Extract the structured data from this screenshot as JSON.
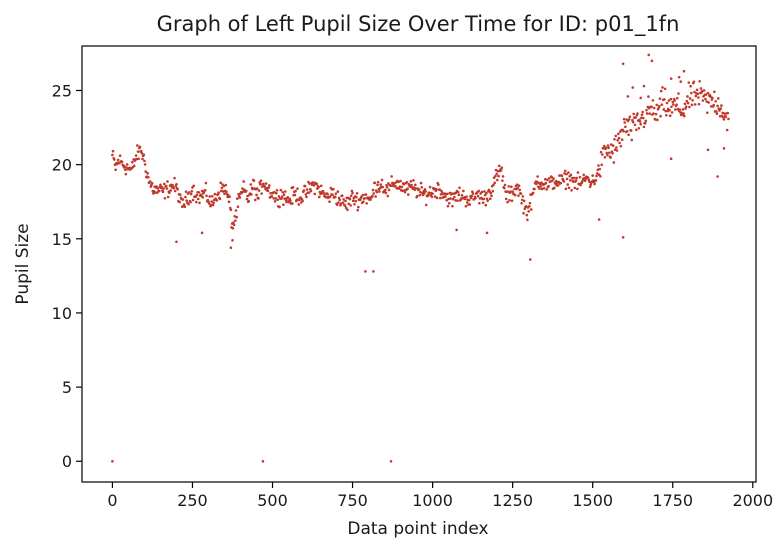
{
  "chart_data": {
    "type": "scatter",
    "title": "Graph of Left Pupil Size Over Time for ID: p01_1fn",
    "xlabel": "Data point index",
    "ylabel": "Pupil Size",
    "xlim": [
      -95,
      2010
    ],
    "ylim": [
      -1.4,
      28.0
    ],
    "xticks": [
      0,
      250,
      500,
      750,
      1000,
      1250,
      1500,
      1750,
      2000
    ],
    "yticks": [
      0,
      5,
      10,
      15,
      20,
      25
    ],
    "grid": false,
    "marker_color": "#c0392b",
    "trend": [
      [
        0,
        20.6
      ],
      [
        10,
        19.8
      ],
      [
        20,
        20.3
      ],
      [
        40,
        19.9
      ],
      [
        60,
        19.6
      ],
      [
        75,
        20.6
      ],
      [
        90,
        21.0
      ],
      [
        100,
        20.2
      ],
      [
        115,
        18.8
      ],
      [
        130,
        18.3
      ],
      [
        160,
        18.2
      ],
      [
        190,
        18.6
      ],
      [
        205,
        18.2
      ],
      [
        215,
        17.2
      ],
      [
        230,
        17.6
      ],
      [
        250,
        18.3
      ],
      [
        270,
        17.8
      ],
      [
        290,
        18.1
      ],
      [
        310,
        17.3
      ],
      [
        330,
        18.1
      ],
      [
        350,
        18.5
      ],
      [
        365,
        17.5
      ],
      [
        375,
        15.8
      ],
      [
        385,
        16.5
      ],
      [
        395,
        17.6
      ],
      [
        410,
        18.3
      ],
      [
        425,
        17.7
      ],
      [
        440,
        18.6
      ],
      [
        455,
        17.8
      ],
      [
        470,
        18.9
      ],
      [
        490,
        18.3
      ],
      [
        510,
        17.8
      ],
      [
        530,
        18.0
      ],
      [
        550,
        17.6
      ],
      [
        570,
        18.0
      ],
      [
        590,
        17.8
      ],
      [
        610,
        18.2
      ],
      [
        630,
        18.7
      ],
      [
        650,
        18.2
      ],
      [
        670,
        17.8
      ],
      [
        690,
        18.1
      ],
      [
        710,
        17.6
      ],
      [
        730,
        17.3
      ],
      [
        750,
        17.8
      ],
      [
        770,
        17.6
      ],
      [
        790,
        17.9
      ],
      [
        805,
        17.5
      ],
      [
        820,
        18.5
      ],
      [
        840,
        18.7
      ],
      [
        860,
        18.2
      ],
      [
        880,
        18.8
      ],
      [
        900,
        18.6
      ],
      [
        920,
        18.3
      ],
      [
        940,
        18.5
      ],
      [
        960,
        18.1
      ],
      [
        980,
        18.0
      ],
      [
        1000,
        18.2
      ],
      [
        1020,
        18.4
      ],
      [
        1040,
        17.9
      ],
      [
        1060,
        17.6
      ],
      [
        1080,
        18.0
      ],
      [
        1100,
        17.8
      ],
      [
        1120,
        17.6
      ],
      [
        1140,
        18.0
      ],
      [
        1160,
        17.7
      ],
      [
        1180,
        18.2
      ],
      [
        1200,
        19.2
      ],
      [
        1215,
        19.6
      ],
      [
        1230,
        17.8
      ],
      [
        1250,
        18.1
      ],
      [
        1265,
        18.6
      ],
      [
        1280,
        17.6
      ],
      [
        1295,
        16.8
      ],
      [
        1310,
        17.6
      ],
      [
        1325,
        19.0
      ],
      [
        1340,
        18.8
      ],
      [
        1360,
        18.6
      ],
      [
        1380,
        18.9
      ],
      [
        1400,
        18.8
      ],
      [
        1420,
        19.1
      ],
      [
        1440,
        18.9
      ],
      [
        1460,
        18.7
      ],
      [
        1480,
        19.1
      ],
      [
        1500,
        18.8
      ],
      [
        1520,
        19.6
      ],
      [
        1540,
        21.0
      ],
      [
        1560,
        20.8
      ],
      [
        1580,
        21.4
      ],
      [
        1600,
        22.6
      ],
      [
        1620,
        22.3
      ],
      [
        1640,
        22.8
      ],
      [
        1660,
        23.2
      ],
      [
        1680,
        23.8
      ],
      [
        1700,
        23.3
      ],
      [
        1720,
        24.3
      ],
      [
        1740,
        23.7
      ],
      [
        1760,
        24.0
      ],
      [
        1780,
        23.6
      ],
      [
        1800,
        24.4
      ],
      [
        1820,
        24.7
      ],
      [
        1840,
        24.6
      ],
      [
        1860,
        24.2
      ],
      [
        1880,
        24.3
      ],
      [
        1900,
        23.9
      ],
      [
        1920,
        23.1
      ]
    ],
    "outliers": [
      [
        0,
        0.0
      ],
      [
        470,
        0.0
      ],
      [
        870,
        0.0
      ],
      [
        200,
        14.8
      ],
      [
        280,
        15.4
      ],
      [
        370,
        14.4
      ],
      [
        375,
        14.9
      ],
      [
        790,
        12.8
      ],
      [
        815,
        12.8
      ],
      [
        1075,
        15.6
      ],
      [
        1170,
        15.4
      ],
      [
        1305,
        13.6
      ],
      [
        1520,
        16.3
      ],
      [
        1595,
        15.1
      ],
      [
        1595,
        26.8
      ],
      [
        1675,
        27.4
      ],
      [
        1685,
        27.0
      ],
      [
        1745,
        20.4
      ],
      [
        1890,
        19.2
      ],
      [
        1860,
        21.0
      ],
      [
        1910,
        21.1
      ],
      [
        1610,
        24.6
      ],
      [
        1625,
        25.2
      ],
      [
        1660,
        25.3
      ],
      [
        1650,
        24.5
      ],
      [
        1745,
        25.8
      ],
      [
        1775,
        25.6
      ],
      [
        1785,
        26.3
      ],
      [
        1770,
        25.9
      ]
    ]
  }
}
